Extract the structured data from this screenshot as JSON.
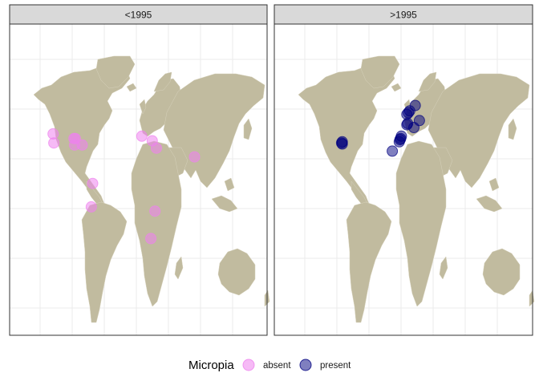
{
  "chart_data": {
    "type": "scatter",
    "description_of_marks": "points on world map",
    "facets": [
      {
        "label": "<1995",
        "points": [
          {
            "lon": -123,
            "lat": 44,
            "status": "absent"
          },
          {
            "lon": -122,
            "lat": 36,
            "status": "absent"
          },
          {
            "lon": -93,
            "lat": 40,
            "status": "absent"
          },
          {
            "lon": -91,
            "lat": 40,
            "status": "absent"
          },
          {
            "lon": -92,
            "lat": 34,
            "status": "absent"
          },
          {
            "lon": -81,
            "lat": 34,
            "status": "absent"
          },
          {
            "lon": -66,
            "lat": -8,
            "status": "absent"
          },
          {
            "lon": -68,
            "lat": -33,
            "status": "absent"
          },
          {
            "lon": 5,
            "lat": 42,
            "status": "absent"
          },
          {
            "lon": 20,
            "lat": 38,
            "status": "absent"
          },
          {
            "lon": 26,
            "lat": 31,
            "status": "absent"
          },
          {
            "lon": 24,
            "lat": -37,
            "status": "absent"
          },
          {
            "lon": 18,
            "lat": -58,
            "status": "absent"
          },
          {
            "lon": 81,
            "lat": 22,
            "status": "absent"
          }
        ]
      },
      {
        "label": ">1995",
        "points": [
          {
            "lon": -88,
            "lat": 37,
            "status": "present"
          },
          {
            "lon": -89,
            "lat": 36,
            "status": "present"
          },
          {
            "lon": -88,
            "lat": 35,
            "status": "present"
          },
          {
            "lon": -16,
            "lat": 28,
            "status": "present"
          },
          {
            "lon": -6,
            "lat": 37,
            "status": "present"
          },
          {
            "lon": -5,
            "lat": 39,
            "status": "present"
          },
          {
            "lon": -4,
            "lat": 40,
            "status": "present"
          },
          {
            "lon": -3,
            "lat": 42,
            "status": "present"
          },
          {
            "lon": 5,
            "lat": 51,
            "status": "present"
          },
          {
            "lon": 6,
            "lat": 52,
            "status": "present"
          },
          {
            "lon": 5,
            "lat": 58,
            "status": "present"
          },
          {
            "lon": 7,
            "lat": 59,
            "status": "present"
          },
          {
            "lon": 9,
            "lat": 60,
            "status": "present"
          },
          {
            "lon": 17,
            "lat": 63,
            "status": "present"
          },
          {
            "lon": 15,
            "lat": 49,
            "status": "present"
          },
          {
            "lon": 23,
            "lat": 54,
            "status": "present"
          }
        ]
      }
    ],
    "legend": {
      "title": "Micropia",
      "position": "bottom",
      "entries": [
        {
          "label": "absent",
          "color": "#ee82ee"
        },
        {
          "label": "present",
          "color": "#000080"
        }
      ]
    },
    "xlim": [
      -180,
      180
    ],
    "ylim": [
      -90,
      90
    ],
    "grid": true
  },
  "colors": {
    "land": "#c1bb9f",
    "panel_border": "#333333",
    "strip_fill": "#d9d9d9",
    "grid": "#ebebeb"
  }
}
